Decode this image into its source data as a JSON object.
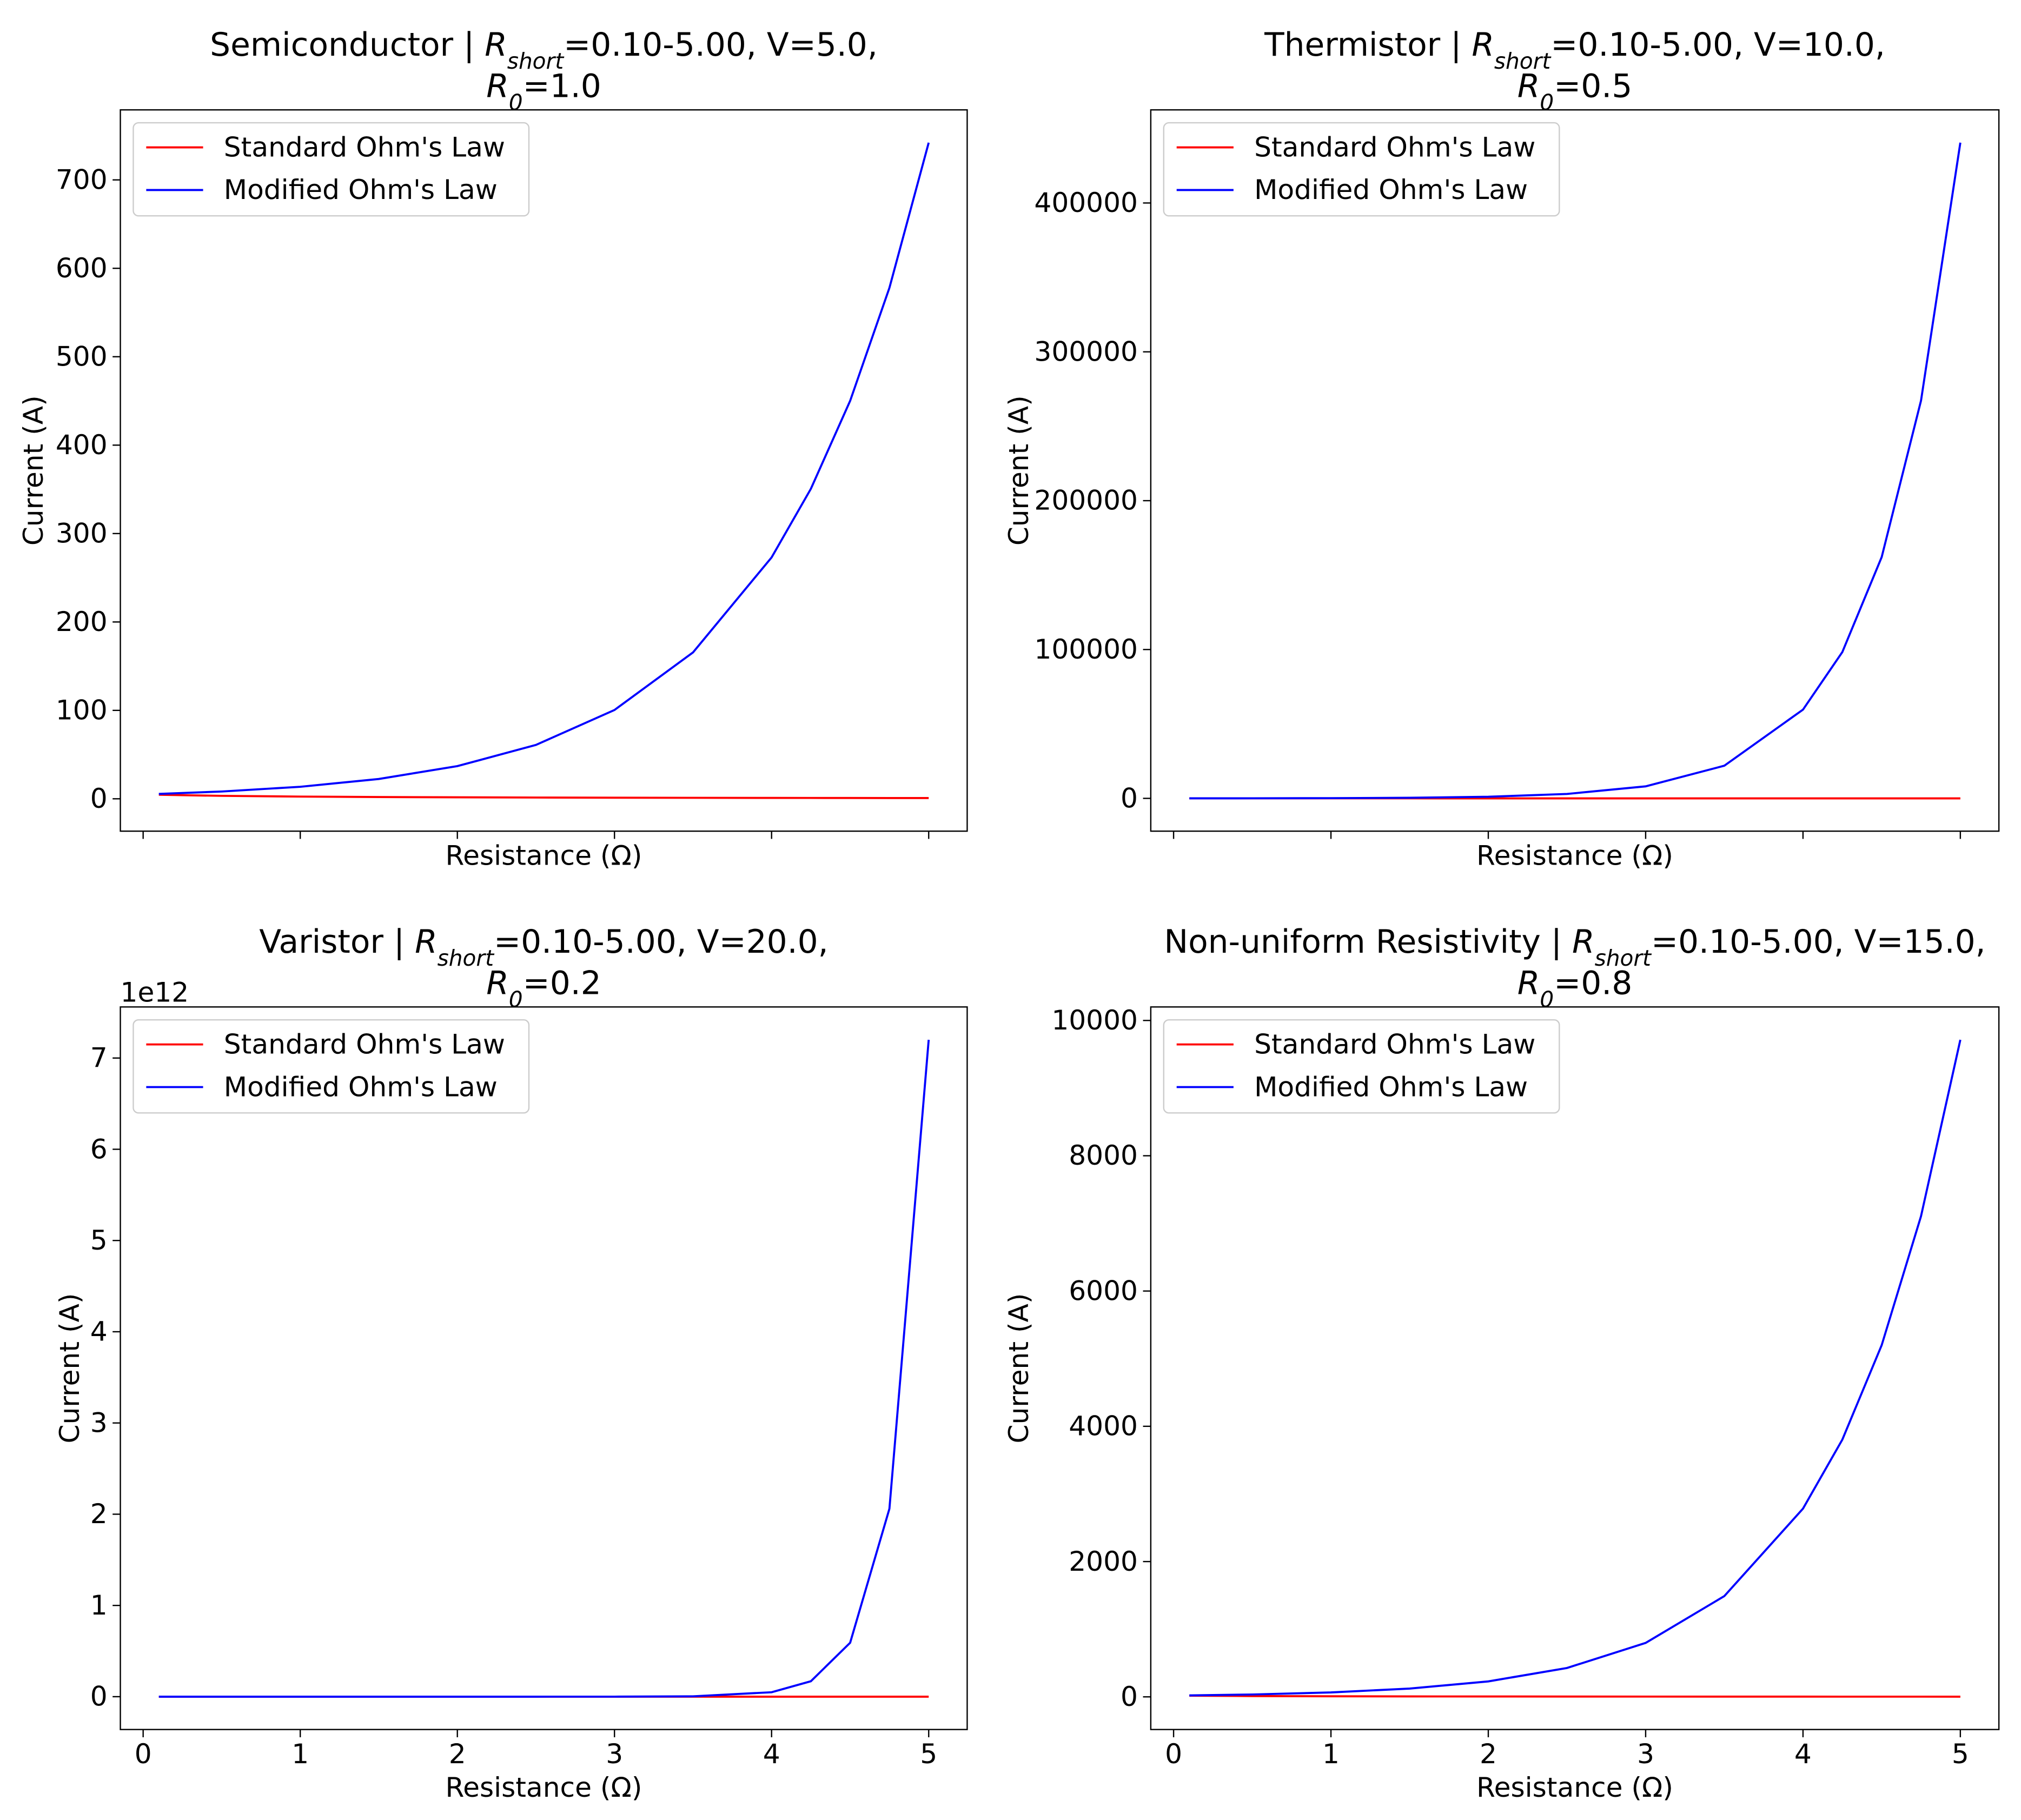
{
  "chart_data": [
    {
      "type": "line",
      "title": [
        [
          {
            "t": "Semiconductor | "
          },
          {
            "t": "R",
            "s": "i"
          },
          {
            "t": "short",
            "s": "sub"
          },
          {
            "t": "=0.10-5.00, V=5.0,"
          }
        ],
        [
          {
            "t": "R",
            "s": "i"
          },
          {
            "t": "0",
            "s": "sub"
          },
          {
            "t": "=1.0"
          }
        ]
      ],
      "xlabel": "Resistance (Ω)",
      "ylabel": "Current (A)",
      "x": [
        0.1,
        0.5,
        1,
        1.5,
        2,
        2.5,
        3,
        3.5,
        4,
        4.25,
        4.5,
        4.75,
        5
      ],
      "series": [
        {
          "name": "Standard Ohm's Law",
          "color": "red",
          "values": [
            4.55,
            3.33,
            2.5,
            2,
            1.67,
            1.43,
            1.25,
            1.11,
            1.0,
            0.95,
            0.91,
            0.87,
            0.83
          ]
        },
        {
          "name": "Modified Ohm's Law",
          "color": "blue",
          "values": [
            5.53,
            8.24,
            13.59,
            22.41,
            36.95,
            60.91,
            100.43,
            165.58,
            272.99,
            350.6,
            450.1,
            577.9,
            742.1
          ]
        }
      ],
      "xlim": [
        -0.145,
        5.245
      ],
      "ylim": [
        -36.6,
        779.2
      ],
      "xticks": [
        0,
        1,
        2,
        3,
        4,
        5
      ],
      "yticks": [
        0,
        100,
        200,
        300,
        400,
        500,
        600,
        700
      ],
      "show_xtick_labels": false,
      "legend": "upper left"
    },
    {
      "type": "line",
      "title": [
        [
          {
            "t": "Thermistor | "
          },
          {
            "t": "R",
            "s": "i"
          },
          {
            "t": "short",
            "s": "sub"
          },
          {
            "t": "=0.10-5.00, V=10.0,"
          }
        ],
        [
          {
            "t": "R",
            "s": "i"
          },
          {
            "t": "0",
            "s": "sub"
          },
          {
            "t": "=0.5"
          }
        ]
      ],
      "xlabel": "Resistance (Ω)",
      "ylabel": "Current (A)",
      "x": [
        0.1,
        0.5,
        1,
        1.5,
        2,
        2.5,
        3,
        3.5,
        4,
        4.25,
        4.5,
        4.75,
        5
      ],
      "series": [
        {
          "name": "Standard Ohm's Law",
          "color": "red",
          "values": [
            16.7,
            10,
            6.67,
            5,
            4,
            3.33,
            2.86,
            2.5,
            2.22,
            2.11,
            2,
            1.9,
            1.82
          ]
        },
        {
          "name": "Modified Ohm's Law",
          "color": "blue",
          "values": [
            24.4,
            54.4,
            147.8,
            401.7,
            1092,
            2968,
            8069,
            21933,
            59619,
            98296,
            162062,
            267202,
            440529
          ]
        }
      ],
      "xlim": [
        -0.145,
        5.245
      ],
      "ylim": [
        -22026,
        462555
      ],
      "xticks": [
        0,
        1,
        2,
        3,
        4,
        5
      ],
      "yticks": [
        0,
        100000,
        200000,
        300000,
        400000
      ],
      "show_xtick_labels": false,
      "legend": "upper left"
    },
    {
      "type": "line",
      "title": [
        [
          {
            "t": "Varistor | "
          },
          {
            "t": "R",
            "s": "i"
          },
          {
            "t": "short",
            "s": "sub"
          },
          {
            "t": "=0.10-5.00, V=20.0,"
          }
        ],
        [
          {
            "t": "R",
            "s": "i"
          },
          {
            "t": "0",
            "s": "sub"
          },
          {
            "t": "=0.2"
          }
        ]
      ],
      "xlabel": "Resistance (Ω)",
      "ylabel": "Current (A)",
      "y_offset_label": "1e12",
      "x": [
        0.1,
        0.5,
        1,
        1.5,
        2,
        2.5,
        3,
        3.5,
        4,
        4.25,
        4.5,
        4.75,
        5
      ],
      "series": [
        {
          "name": "Standard Ohm's Law",
          "color": "red",
          "values": [
            66.7,
            28.6,
            16.7,
            11.8,
            9.09,
            7.41,
            6.25,
            5.41,
            4.76,
            4.49,
            4.26,
            4.04,
            3.85
          ]
        },
        {
          "name": "Modified Ohm's Law",
          "color": "blue",
          "values": [
            165,
            1218,
            14841,
            180804,
            2200000,
            26800000,
            327000000,
            3980000000,
            48500000000,
            169000000000,
            591000000000,
            2060000000000,
            7200000000000
          ]
        }
      ],
      "xlim": [
        -0.145,
        5.245
      ],
      "ylim": [
        -360000000000,
        7560000000000
      ],
      "xticks": [
        0,
        1,
        2,
        3,
        4,
        5
      ],
      "yticks": [
        0,
        {
          "value": 1000000000000,
          "label": "1"
        },
        {
          "value": 2000000000000,
          "label": "2"
        },
        {
          "value": 3000000000000,
          "label": "3"
        },
        {
          "value": 4000000000000,
          "label": "4"
        },
        {
          "value": 5000000000000,
          "label": "5"
        },
        {
          "value": 6000000000000,
          "label": "6"
        },
        {
          "value": 7000000000000,
          "label": "7"
        }
      ],
      "show_xtick_labels": true,
      "legend": "upper left"
    },
    {
      "type": "line",
      "title": [
        [
          {
            "t": "Non-uniform Resistivity | "
          },
          {
            "t": "R",
            "s": "i"
          },
          {
            "t": "short",
            "s": "sub"
          },
          {
            "t": "=0.10-5.00, V=15.0,"
          }
        ],
        [
          {
            "t": "R",
            "s": "i"
          },
          {
            "t": "0",
            "s": "sub"
          },
          {
            "t": "=0.8"
          }
        ]
      ],
      "xlabel": "Resistance (Ω)",
      "ylabel": "Current (A)",
      "x": [
        0.1,
        0.5,
        1,
        1.5,
        2,
        2.5,
        3,
        3.5,
        4,
        4.25,
        4.5,
        4.75,
        5
      ],
      "series": [
        {
          "name": "Standard Ohm's Law",
          "color": "red",
          "values": [
            16.7,
            11.5,
            8.33,
            6.52,
            5.36,
            4.55,
            3.95,
            3.49,
            3.13,
            2.96,
            2.83,
            2.7,
            2.59
          ]
        },
        {
          "name": "Modified Ohm's Law",
          "color": "blue",
          "values": [
            21.2,
            35.0,
            65.4,
            122.3,
            228.4,
            426.7,
            797.3,
            1489.5,
            2782.8,
            3803,
            5199,
            7106,
            9714
          ]
        }
      ],
      "xlim": [
        -0.145,
        5.245
      ],
      "ylim": [
        -483,
        10200
      ],
      "xticks": [
        0,
        1,
        2,
        3,
        4,
        5
      ],
      "yticks": [
        0,
        2000,
        4000,
        6000,
        8000,
        10000
      ],
      "show_xtick_labels": true,
      "legend": "upper left"
    }
  ]
}
